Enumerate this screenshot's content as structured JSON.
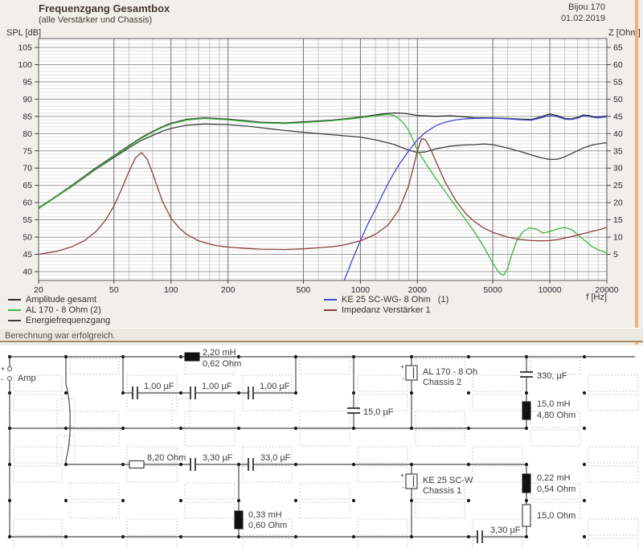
{
  "header": {
    "title": "Frequenzgang Gesamtbox",
    "subtitle": "(alle Verstärker und Chassis)",
    "project": "Bijou 170",
    "date": "01.02.2019"
  },
  "chart": {
    "y_left_label": "SPL [dB]",
    "y_right_label": "Z [Ohm]",
    "x_label": "f [Hz]",
    "y_left_ticks": [
      105,
      100,
      95,
      90,
      85,
      80,
      75,
      70,
      65,
      60,
      55,
      50,
      45,
      40
    ],
    "y_right_ticks": [
      65,
      60,
      55,
      50,
      45,
      40,
      35,
      30,
      25,
      20,
      15,
      10,
      5
    ],
    "x_ticks": [
      20,
      50,
      100,
      200,
      500,
      1000,
      2000,
      5000,
      10000,
      20000
    ]
  },
  "legend": {
    "left": [
      {
        "label": "Amplitude gesamt",
        "color": "#2e2e2e"
      },
      {
        "label": "AL 170 - 8 Ohm (2)",
        "color": "#3cb83c"
      },
      {
        "label": "Energiefrequenzgang",
        "color": "#3d3d3d"
      }
    ],
    "right": [
      {
        "label": "KE 25 SC-WG- 8 Ohm   (1)",
        "color": "#4747d1"
      },
      {
        "label": "Impedanz Verstärker 1",
        "color": "#8e3e3e"
      }
    ]
  },
  "status": {
    "message": "Berechnung war erfolgreich."
  },
  "chart_data": {
    "type": "line",
    "title": "Frequenzgang Gesamtbox",
    "x_scale": "log",
    "x_range": [
      20,
      20000
    ],
    "xlabel": "f [Hz]",
    "y_left": {
      "label": "SPL [dB]",
      "range": [
        40,
        105
      ],
      "minor_step": 1,
      "major_step": 5
    },
    "y_right": {
      "label": "Z [Ohm]",
      "range": [
        0,
        65
      ],
      "major_step": 5
    },
    "grid": "on",
    "legend_position": "below",
    "series": [
      {
        "id": "amplitude",
        "name": "Amplitude gesamt",
        "axis": "left",
        "color": "#2e2e2e",
        "points": [
          [
            20,
            58.5
          ],
          [
            25,
            62
          ],
          [
            30,
            65
          ],
          [
            35,
            67.7
          ],
          [
            40,
            70
          ],
          [
            45,
            71.9
          ],
          [
            50,
            73.6
          ],
          [
            60,
            76.5
          ],
          [
            70,
            78.9
          ],
          [
            80,
            80.6
          ],
          [
            90,
            82
          ],
          [
            100,
            83
          ],
          [
            120,
            84.1
          ],
          [
            150,
            84.6
          ],
          [
            200,
            84.2
          ],
          [
            250,
            83.7
          ],
          [
            300,
            83.3
          ],
          [
            400,
            83.1
          ],
          [
            500,
            83.4
          ],
          [
            700,
            83.9
          ],
          [
            900,
            84.5
          ],
          [
            1100,
            85.1
          ],
          [
            1300,
            85.7
          ],
          [
            1500,
            86
          ],
          [
            1700,
            85.9
          ],
          [
            2000,
            85.3
          ],
          [
            2500,
            85
          ],
          [
            3000,
            85.2
          ],
          [
            3500,
            84.9
          ],
          [
            4000,
            84.6
          ],
          [
            5000,
            84.6
          ],
          [
            6000,
            84.4
          ],
          [
            7000,
            84.2
          ],
          [
            8000,
            84.1
          ],
          [
            9000,
            84.9
          ],
          [
            10000,
            85.7
          ],
          [
            11000,
            85.2
          ],
          [
            12000,
            84.4
          ],
          [
            13000,
            84.3
          ],
          [
            14000,
            84.7
          ],
          [
            15000,
            85.4
          ],
          [
            16000,
            85.3
          ],
          [
            17000,
            84.9
          ],
          [
            18000,
            84.8
          ],
          [
            20000,
            85.1
          ]
        ]
      },
      {
        "id": "energie",
        "name": "Energiefrequenzgang",
        "axis": "left",
        "color": "#3d3d3d",
        "points": [
          [
            20,
            58.3
          ],
          [
            30,
            64.7
          ],
          [
            40,
            69.6
          ],
          [
            50,
            73.1
          ],
          [
            60,
            75.9
          ],
          [
            70,
            78.1
          ],
          [
            80,
            79.5
          ],
          [
            90,
            80.7
          ],
          [
            100,
            81.5
          ],
          [
            120,
            82.4
          ],
          [
            150,
            82.8
          ],
          [
            200,
            82.6
          ],
          [
            250,
            82.2
          ],
          [
            300,
            81.7
          ],
          [
            400,
            80.9
          ],
          [
            500,
            80.4
          ],
          [
            700,
            79.7
          ],
          [
            1000,
            79
          ],
          [
            1200,
            78.2
          ],
          [
            1500,
            76.9
          ],
          [
            1800,
            75.2
          ],
          [
            2000,
            74.5
          ],
          [
            2200,
            74.7
          ],
          [
            2500,
            75.6
          ],
          [
            3000,
            76.4
          ],
          [
            3500,
            76.7
          ],
          [
            4000,
            76.8
          ],
          [
            4500,
            77
          ],
          [
            5000,
            76.8
          ],
          [
            6000,
            75.8
          ],
          [
            7000,
            74.8
          ],
          [
            8000,
            73.8
          ],
          [
            9000,
            73
          ],
          [
            10000,
            72.5
          ],
          [
            11000,
            72.6
          ],
          [
            12000,
            73.3
          ],
          [
            13000,
            74.2
          ],
          [
            15000,
            75.8
          ],
          [
            17000,
            76.8
          ],
          [
            20000,
            77.4
          ]
        ]
      },
      {
        "id": "al170",
        "name": "AL 170 - 8 Ohm (2)",
        "axis": "left",
        "color": "#3cb83c",
        "points": [
          [
            20,
            58.4
          ],
          [
            30,
            64.8
          ],
          [
            40,
            69.8
          ],
          [
            50,
            73.4
          ],
          [
            60,
            76.3
          ],
          [
            70,
            78.7
          ],
          [
            80,
            80.4
          ],
          [
            90,
            81.8
          ],
          [
            100,
            82.8
          ],
          [
            120,
            83.9
          ],
          [
            150,
            84.4
          ],
          [
            200,
            84
          ],
          [
            250,
            83.5
          ],
          [
            300,
            83.1
          ],
          [
            400,
            82.9
          ],
          [
            500,
            83.2
          ],
          [
            700,
            83.7
          ],
          [
            900,
            84.3
          ],
          [
            1100,
            84.9
          ],
          [
            1300,
            85.4
          ],
          [
            1400,
            85.6
          ],
          [
            1500,
            85.3
          ],
          [
            1600,
            84.3
          ],
          [
            1700,
            82.9
          ],
          [
            1800,
            80.9
          ],
          [
            1900,
            78
          ],
          [
            2000,
            75.2
          ],
          [
            2200,
            71.6
          ],
          [
            2500,
            67
          ],
          [
            2800,
            63.2
          ],
          [
            3200,
            58.8
          ],
          [
            3600,
            55
          ],
          [
            4000,
            51.5
          ],
          [
            4500,
            47
          ],
          [
            5000,
            42.5
          ],
          [
            5400,
            39.6
          ],
          [
            5700,
            38.9
          ],
          [
            6000,
            41
          ],
          [
            6300,
            45
          ],
          [
            6700,
            49
          ],
          [
            7200,
            51.5
          ],
          [
            7800,
            52.7
          ],
          [
            8500,
            52.3
          ],
          [
            9200,
            51.2
          ],
          [
            10000,
            51.6
          ],
          [
            11000,
            52.4
          ],
          [
            12000,
            52.8
          ],
          [
            13000,
            52.2
          ],
          [
            14000,
            50.8
          ],
          [
            15000,
            49.4
          ],
          [
            16500,
            47.5
          ],
          [
            18000,
            46.3
          ],
          [
            20000,
            45.4
          ]
        ]
      },
      {
        "id": "ke25",
        "name": "KE 25 SC-WG- 8 Ohm (1)",
        "axis": "left",
        "color": "#4747d1",
        "points": [
          [
            700,
            30
          ],
          [
            800,
            36
          ],
          [
            850,
            39.5
          ],
          [
            900,
            43
          ],
          [
            1000,
            49
          ],
          [
            1100,
            54
          ],
          [
            1200,
            58
          ],
          [
            1300,
            62
          ],
          [
            1400,
            65.5
          ],
          [
            1500,
            68.5
          ],
          [
            1600,
            71
          ],
          [
            1800,
            75
          ],
          [
            2000,
            78.2
          ],
          [
            2200,
            80.3
          ],
          [
            2500,
            82.3
          ],
          [
            2800,
            83.3
          ],
          [
            3200,
            84
          ],
          [
            3600,
            84.3
          ],
          [
            4000,
            84.4
          ],
          [
            5000,
            84.5
          ],
          [
            6000,
            84.3
          ],
          [
            7000,
            84
          ],
          [
            8000,
            83.9
          ],
          [
            9000,
            84.6
          ],
          [
            10000,
            85.3
          ],
          [
            11000,
            84.9
          ],
          [
            12000,
            84.2
          ],
          [
            13000,
            84.1
          ],
          [
            14000,
            84.5
          ],
          [
            15000,
            85.1
          ],
          [
            16000,
            85
          ],
          [
            17000,
            84.7
          ],
          [
            18000,
            84.6
          ],
          [
            20000,
            84.9
          ]
        ]
      },
      {
        "id": "impedanz",
        "name": "Impedanz Verstärker 1",
        "axis": "right",
        "color": "#8e3e3e",
        "points": [
          [
            20,
            5
          ],
          [
            25,
            5.9
          ],
          [
            30,
            7.2
          ],
          [
            35,
            9
          ],
          [
            40,
            11.5
          ],
          [
            45,
            14.8
          ],
          [
            50,
            19
          ],
          [
            55,
            24
          ],
          [
            60,
            29
          ],
          [
            65,
            33
          ],
          [
            70,
            34.5
          ],
          [
            75,
            32.5
          ],
          [
            80,
            28.5
          ],
          [
            90,
            20.5
          ],
          [
            100,
            15.5
          ],
          [
            110,
            12.8
          ],
          [
            120,
            10.9
          ],
          [
            140,
            8.9
          ],
          [
            170,
            7.6
          ],
          [
            200,
            7.1
          ],
          [
            250,
            6.7
          ],
          [
            300,
            6.5
          ],
          [
            400,
            6.4
          ],
          [
            500,
            6.6
          ],
          [
            600,
            6.9
          ],
          [
            700,
            7.2
          ],
          [
            800,
            7.6
          ],
          [
            1000,
            8.9
          ],
          [
            1200,
            10.8
          ],
          [
            1400,
            13.5
          ],
          [
            1600,
            18
          ],
          [
            1800,
            25
          ],
          [
            1900,
            30
          ],
          [
            2000,
            35
          ],
          [
            2100,
            38.5
          ],
          [
            2200,
            38.3
          ],
          [
            2350,
            35.5
          ],
          [
            2500,
            32
          ],
          [
            2800,
            26
          ],
          [
            3200,
            20.5
          ],
          [
            3600,
            16.8
          ],
          [
            4000,
            14.5
          ],
          [
            4500,
            12.6
          ],
          [
            5000,
            11.4
          ],
          [
            6000,
            10
          ],
          [
            7000,
            9.3
          ],
          [
            8000,
            9
          ],
          [
            9000,
            8.9
          ],
          [
            10000,
            9
          ],
          [
            11000,
            9.3
          ],
          [
            12000,
            9.7
          ],
          [
            14000,
            10.6
          ],
          [
            16000,
            11.4
          ],
          [
            18000,
            12.1
          ],
          [
            20000,
            12.8
          ]
        ]
      }
    ]
  },
  "schematic": {
    "texts": {
      "amp": "Amp",
      "plus": "+",
      "minus": "-",
      "l1a": "2,20 mH",
      "l1b": "0,62 Ohm",
      "c1": "1,00 µF",
      "c2": "1,00 µF",
      "c3": "1,00 µF",
      "c4": "15,0 µF",
      "sp2a": "AL 170 - 8 Oh",
      "sp2b": "Chassis 2",
      "c5": "330, µF",
      "l2a": "15,0 mH",
      "l2b": "4,80 Ohm",
      "r1": "8,20 Ohm",
      "c6": "3,30 µF",
      "c7": "33,0 µF",
      "l3a": "0,33 mH",
      "l3b": "0,60 Ohm",
      "sp1a": "KE 25 SC-W",
      "sp1b": "Chassis 1",
      "l4a": "0,22 mH",
      "l4b": "0,54 Ohm",
      "r2": "15,0 Ohm",
      "c8": "3,30 µF"
    }
  }
}
